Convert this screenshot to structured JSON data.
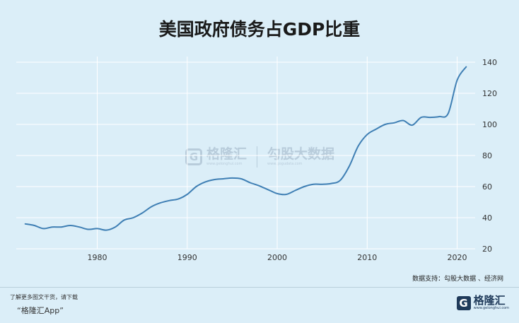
{
  "title": "美国政府债务占GDP比重",
  "source": "数据支持：勾股大数据 、经济网",
  "footer": {
    "line1": "了解更多图文干货，请下载",
    "line2": "“格隆汇App”"
  },
  "brand": {
    "mark": "G",
    "name": "格隆汇",
    "url": "www.gelonghui.com"
  },
  "watermark": {
    "mark": "G",
    "name": "格隆汇",
    "url": "www.gelonghui.com",
    "gogu_name": "勾股大数据",
    "gogu_url": "www.gogudata.com"
  },
  "colors": {
    "background": "#dbeef8",
    "line": "#3f7fb4",
    "grid": "#ffffff"
  },
  "chart_data": {
    "type": "line",
    "title": "美国政府债务占GDP比重",
    "xlabel": "",
    "ylabel": "",
    "xlim": [
      1971,
      2022
    ],
    "ylim": [
      20,
      140
    ],
    "xticks": [
      1980,
      1990,
      2000,
      2010,
      2020
    ],
    "yticks": [
      20,
      40,
      60,
      80,
      100,
      120,
      140
    ],
    "y_axis_side": "right",
    "grid": true,
    "series": [
      {
        "x": [
          1972,
          1973,
          1974,
          1975,
          1976,
          1977,
          1978,
          1979,
          1980,
          1981,
          1982,
          1983,
          1984,
          1985,
          1986,
          1987,
          1988,
          1989,
          1990,
          1991,
          1992,
          1993,
          1994,
          1995,
          1996,
          1997,
          1998,
          1999,
          2000,
          2001,
          2002,
          2003,
          2004,
          2005,
          2006,
          2007,
          2008,
          2009,
          2010,
          2011,
          2012,
          2013,
          2014,
          2015,
          2016,
          2017,
          2018,
          2019,
          2020,
          2021
        ],
        "values": [
          36,
          35,
          33,
          34,
          34,
          35,
          34,
          32.5,
          33,
          32,
          34,
          38.5,
          40,
          43,
          47,
          49.5,
          51,
          52,
          55,
          60,
          63,
          64.5,
          65,
          65.5,
          65,
          62.5,
          60.5,
          58,
          55.5,
          55,
          57.5,
          60,
          61.5,
          61.5,
          62,
          64,
          73,
          86,
          93.5,
          97,
          100,
          101,
          102.5,
          99.5,
          104.5,
          104.5,
          105,
          107,
          128.5,
          137
        ]
      }
    ]
  }
}
